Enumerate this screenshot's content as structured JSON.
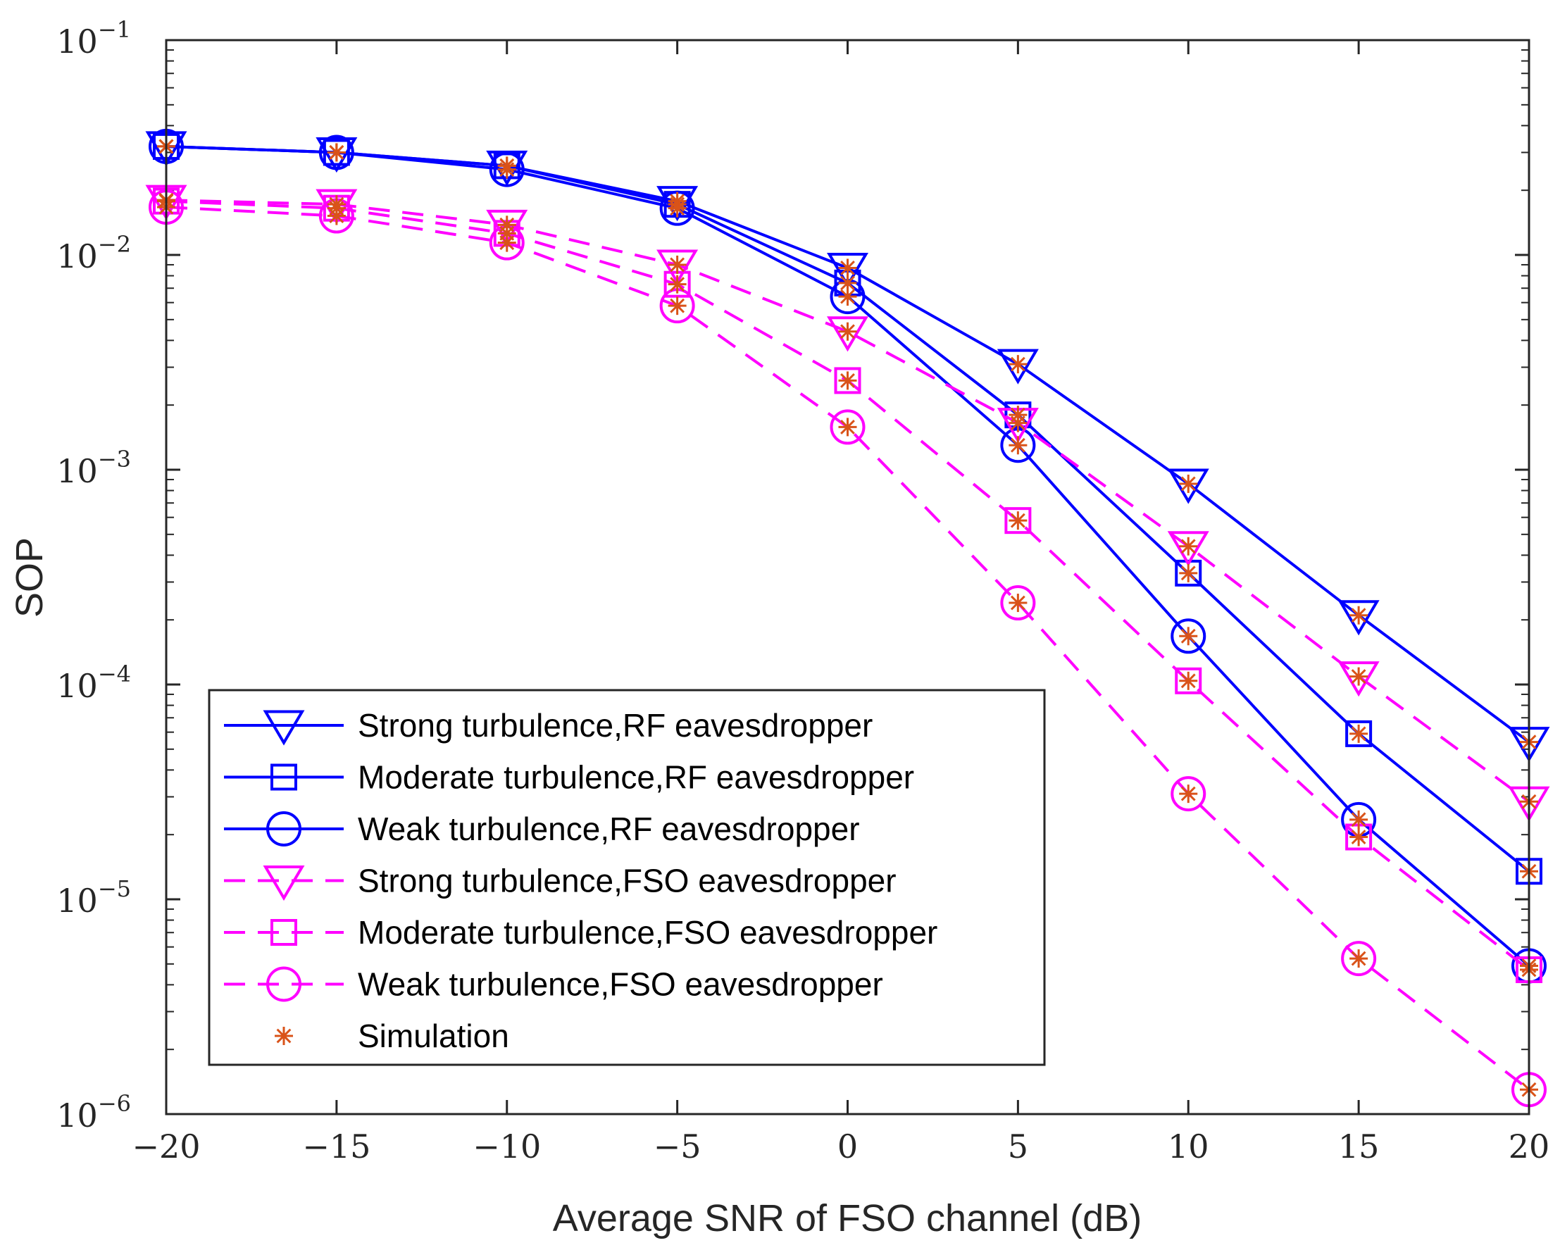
{
  "chart_data": {
    "type": "line",
    "title": "",
    "xlabel": "Average SNR of FSO channel (dB)",
    "ylabel": "SOP",
    "yscale": "log",
    "xlim": [
      -20,
      20
    ],
    "ylim": [
      1e-06,
      0.1
    ],
    "x": [
      -20,
      -15,
      -10,
      -5,
      0,
      5,
      10,
      15,
      20
    ],
    "x_tick_labels": [
      "−20",
      "−15",
      "−10",
      "−5",
      "0",
      "5",
      "10",
      "15",
      "20"
    ],
    "y_ticks": [
      {
        "value": 0.1,
        "base": "10",
        "exp": "−1"
      },
      {
        "value": 0.01,
        "base": "10",
        "exp": "−2"
      },
      {
        "value": 0.001,
        "base": "10",
        "exp": "−3"
      },
      {
        "value": 0.0001,
        "base": "10",
        "exp": "−4"
      },
      {
        "value": 1e-05,
        "base": "10",
        "exp": "−5"
      },
      {
        "value": 1e-06,
        "base": "10",
        "exp": "−6"
      }
    ],
    "legend_position": "bottom-left",
    "series": [
      {
        "name": "Strong turbulence,RF eavesdropper",
        "color": "#0000ff",
        "dash": "solid",
        "marker": "triangle-down",
        "values": [
          0.032,
          0.03,
          0.026,
          0.0178,
          0.0087,
          0.0031,
          0.00086,
          0.00021,
          5.4e-05
        ]
      },
      {
        "name": "Moderate turbulence,RF eavesdropper",
        "color": "#0000ff",
        "dash": "solid",
        "marker": "square",
        "values": [
          0.032,
          0.03,
          0.026,
          0.0172,
          0.0074,
          0.0018,
          0.00033,
          5.9e-05,
          1.35e-05
        ]
      },
      {
        "name": "Weak turbulence,RF eavesdropper",
        "color": "#0000ff",
        "dash": "solid",
        "marker": "circle",
        "values": [
          0.032,
          0.03,
          0.025,
          0.0165,
          0.0064,
          0.0013,
          0.000168,
          2.35e-05,
          4.9e-06
        ]
      },
      {
        "name": "Strong turbulence,FSO eavesdropper",
        "color": "#ff00ff",
        "dash": "dashed",
        "marker": "triangle-down",
        "values": [
          0.018,
          0.0172,
          0.0138,
          0.009,
          0.0044,
          0.00165,
          0.00044,
          0.000109,
          2.85e-05
        ]
      },
      {
        "name": "Moderate turbulence,FSO eavesdropper",
        "color": "#ff00ff",
        "dash": "dashed",
        "marker": "square",
        "values": [
          0.0178,
          0.0165,
          0.0126,
          0.0073,
          0.0026,
          0.00058,
          0.000104,
          1.95e-05,
          4.7e-06
        ]
      },
      {
        "name": "Weak turbulence,FSO eavesdropper",
        "color": "#ff00ff",
        "dash": "dashed",
        "marker": "circle",
        "values": [
          0.0167,
          0.0152,
          0.0114,
          0.0058,
          0.00158,
          0.00024,
          3.1e-05,
          5.3e-06,
          1.3e-06
        ]
      }
    ],
    "simulation": {
      "name": "Simulation",
      "color": "#d95319",
      "marker": "asterisk",
      "values": [
        [
          0.032,
          0.03,
          0.026,
          0.0178,
          0.0087,
          0.0031,
          0.00086,
          0.00021,
          5.4e-05
        ],
        [
          0.032,
          0.03,
          0.026,
          0.0172,
          0.0074,
          0.0018,
          0.00033,
          5.9e-05,
          1.35e-05
        ],
        [
          0.032,
          0.03,
          0.025,
          0.0165,
          0.0064,
          0.0013,
          0.000168,
          2.35e-05,
          4.9e-06
        ],
        [
          0.018,
          0.0172,
          0.0138,
          0.009,
          0.0044,
          0.00165,
          0.00044,
          0.000109,
          2.85e-05
        ],
        [
          0.0178,
          0.0165,
          0.0126,
          0.0073,
          0.0026,
          0.00058,
          0.000104,
          1.95e-05,
          4.7e-06
        ],
        [
          0.0167,
          0.0152,
          0.0114,
          0.0058,
          0.00158,
          0.00024,
          3.1e-05,
          5.3e-06,
          1.3e-06
        ]
      ]
    }
  }
}
